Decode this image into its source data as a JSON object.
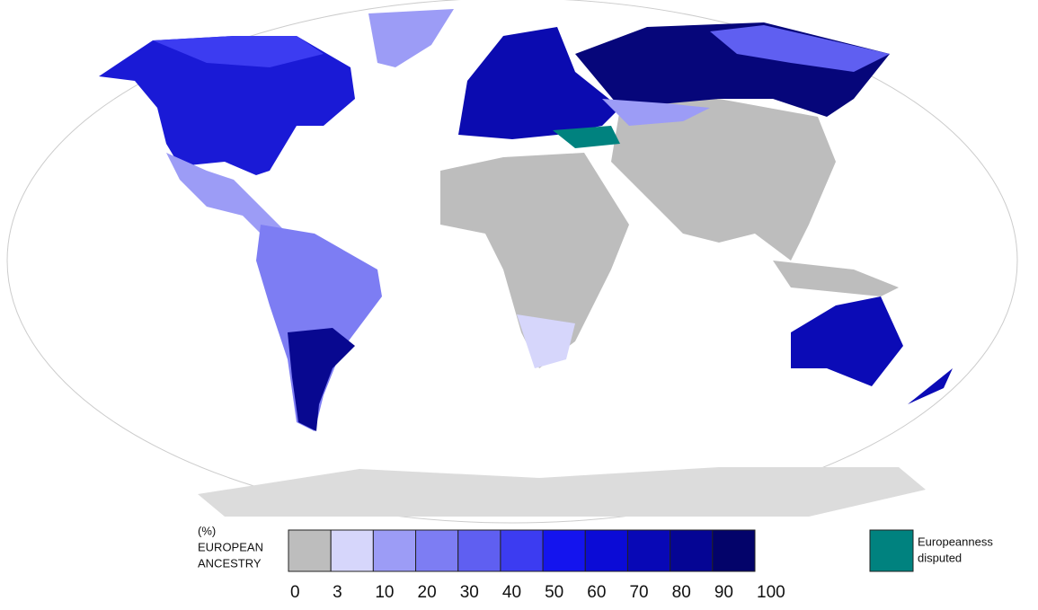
{
  "legend": {
    "title": [
      "(%)",
      "EUROPEAN",
      "ANCESTRY"
    ],
    "bins": [
      0,
      3,
      10,
      20,
      30,
      40,
      50,
      60,
      70,
      80,
      90,
      100
    ],
    "colors": [
      "#bdbdbd",
      "#d6d6fb",
      "#9c9cf6",
      "#7d7df3",
      "#5f5ff1",
      "#3c3cf1",
      "#1414ee",
      "#0b0bd6",
      "#0808b6",
      "#050594",
      "#03036a"
    ],
    "disputed": {
      "label": [
        "Europeanness",
        "disputed"
      ],
      "color": "#00827f"
    }
  }
}
